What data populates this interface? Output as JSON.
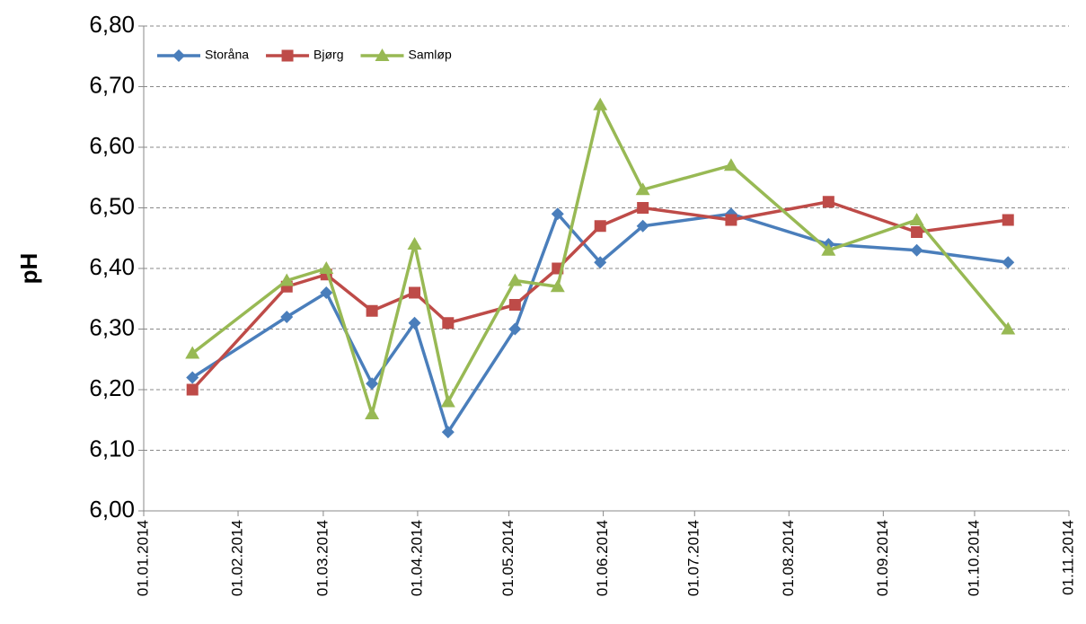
{
  "chart_data": {
    "type": "line",
    "y_label": "pH",
    "x": [
      "2014-01-17",
      "2014-02-17",
      "2014-03-02",
      "2014-03-17",
      "2014-03-31",
      "2014-04-11",
      "2014-05-03",
      "2014-05-17",
      "2014-05-31",
      "2014-06-14",
      "2014-07-13",
      "2014-08-14",
      "2014-09-12",
      "2014-10-12"
    ],
    "series": [
      {
        "name": "Storåna",
        "color": "#4a7ebb",
        "marker": "diamond",
        "values": [
          6.22,
          6.32,
          6.36,
          6.21,
          6.31,
          6.13,
          6.3,
          6.49,
          6.41,
          6.47,
          6.49,
          6.44,
          6.43,
          6.41
        ]
      },
      {
        "name": "Bjørg",
        "color": "#be4b48",
        "marker": "square",
        "values": [
          6.2,
          6.37,
          6.39,
          6.33,
          6.36,
          6.31,
          6.34,
          6.4,
          6.47,
          6.5,
          6.48,
          6.51,
          6.46,
          6.48
        ]
      },
      {
        "name": "Samløp",
        "color": "#98b954",
        "marker": "triangle",
        "values": [
          6.26,
          6.38,
          6.4,
          6.16,
          6.44,
          6.18,
          6.38,
          6.37,
          6.67,
          6.53,
          6.57,
          6.43,
          6.48,
          6.3
        ]
      }
    ],
    "xlim": [
      "2014-01-01",
      "2014-11-01"
    ],
    "xticks": [
      {
        "value": "2014-01-01",
        "label": "01.01.2014"
      },
      {
        "value": "2014-02-01",
        "label": "01.02.2014"
      },
      {
        "value": "2014-03-01",
        "label": "01.03.2014"
      },
      {
        "value": "2014-04-01",
        "label": "01.04.2014"
      },
      {
        "value": "2014-05-01",
        "label": "01.05.2014"
      },
      {
        "value": "2014-06-01",
        "label": "01.06.2014"
      },
      {
        "value": "2014-07-01",
        "label": "01.07.2014"
      },
      {
        "value": "2014-08-01",
        "label": "01.08.2014"
      },
      {
        "value": "2014-09-01",
        "label": "01.09.2014"
      },
      {
        "value": "2014-10-01",
        "label": "01.10.2014"
      },
      {
        "value": "2014-11-01",
        "label": "01.11.2014"
      }
    ],
    "ylim": [
      6.0,
      6.8
    ],
    "yticks": [
      {
        "value": 6.0,
        "label": "6,00"
      },
      {
        "value": 6.1,
        "label": "6,10"
      },
      {
        "value": 6.2,
        "label": "6,20"
      },
      {
        "value": 6.3,
        "label": "6,30"
      },
      {
        "value": 6.4,
        "label": "6,40"
      },
      {
        "value": 6.5,
        "label": "6,50"
      },
      {
        "value": 6.6,
        "label": "6,60"
      },
      {
        "value": 6.7,
        "label": "6,70"
      },
      {
        "value": 6.8,
        "label": "6,80"
      }
    ],
    "grid": true,
    "legend": "top-left"
  }
}
